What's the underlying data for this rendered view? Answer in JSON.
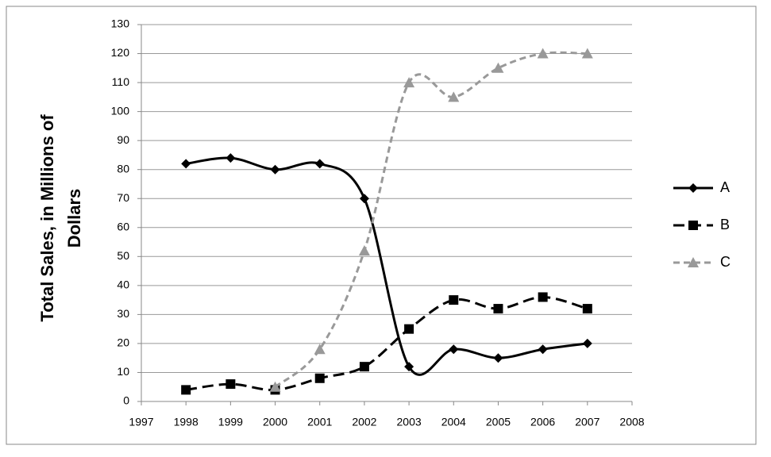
{
  "chart_data": {
    "type": "line",
    "y_label": [
      "Total Sales, in Millions of",
      "Dollars"
    ],
    "x": [
      1998,
      1999,
      2000,
      2001,
      2002,
      2003,
      2004,
      2005,
      2006,
      2007
    ],
    "series": [
      {
        "name": "A",
        "color": "#000000",
        "dash": "solid",
        "marker": "diamond",
        "values": [
          82,
          84,
          80,
          82,
          70,
          12,
          18,
          15,
          18,
          20
        ]
      },
      {
        "name": "B",
        "color": "#000000",
        "dash": "dashed",
        "marker": "square",
        "values": [
          4,
          6,
          4,
          8,
          12,
          25,
          35,
          32,
          36,
          32
        ]
      },
      {
        "name": "C",
        "color": "#999999",
        "dash": "dashed",
        "marker": "triangle",
        "values": [
          null,
          null,
          5,
          18,
          52,
          110,
          105,
          115,
          120,
          120
        ]
      }
    ],
    "xlim": [
      1997,
      2008
    ],
    "xticks": [
      1997,
      1998,
      1999,
      2000,
      2001,
      2002,
      2003,
      2004,
      2005,
      2006,
      2007,
      2008
    ],
    "ylim": [
      0,
      130
    ],
    "yticks": [
      0,
      10,
      20,
      30,
      40,
      50,
      60,
      70,
      80,
      90,
      100,
      110,
      120,
      130
    ],
    "grid": true,
    "smooth": true,
    "legend": "right"
  }
}
